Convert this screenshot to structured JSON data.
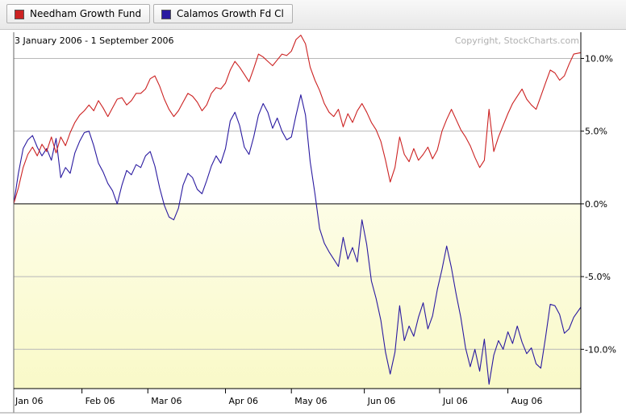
{
  "legend": {
    "items": [
      {
        "label": "Needham Growth Fund",
        "color": "#cc2222"
      },
      {
        "label": "Calamos Growth Fd Cl",
        "color": "#2a1aa0"
      }
    ]
  },
  "chart_data": {
    "type": "line",
    "subtitle": "3 January 2006 - 1 September 2006",
    "copyright": "Copyright, StockCharts.com",
    "ylim": [
      -12.7,
      11.8
    ],
    "y_ticks": [
      {
        "value": 10,
        "label": "10.0%"
      },
      {
        "value": 5,
        "label": "5.0%"
      },
      {
        "value": 0,
        "label": "0.0%"
      },
      {
        "value": -5,
        "label": "-5.0%"
      },
      {
        "value": -10,
        "label": "-10.0%"
      }
    ],
    "x_ticks": [
      {
        "date": "2006-01-03",
        "label": "Jan 06"
      },
      {
        "date": "2006-02-01",
        "label": "Feb 06"
      },
      {
        "date": "2006-03-01",
        "label": "Mar 06"
      },
      {
        "date": "2006-04-03",
        "label": "Apr 06"
      },
      {
        "date": "2006-05-01",
        "label": "May 06"
      },
      {
        "date": "2006-06-01",
        "label": "Jun 06"
      },
      {
        "date": "2006-07-03",
        "label": "Jul 06"
      },
      {
        "date": "2006-08-01",
        "label": "Aug 06"
      }
    ],
    "xlim": [
      "2006-01-03",
      "2006-09-01"
    ],
    "series": [
      {
        "name": "Needham Growth Fund",
        "color": "#cc2222",
        "points": [
          [
            "2006-01-03",
            0.0
          ],
          [
            "2006-01-05",
            1.1
          ],
          [
            "2006-01-07",
            2.5
          ],
          [
            "2006-01-09",
            3.4
          ],
          [
            "2006-01-11",
            3.9
          ],
          [
            "2006-01-13",
            3.3
          ],
          [
            "2006-01-15",
            4.1
          ],
          [
            "2006-01-17",
            3.6
          ],
          [
            "2006-01-19",
            4.6
          ],
          [
            "2006-01-21",
            3.5
          ],
          [
            "2006-01-23",
            4.6
          ],
          [
            "2006-01-25",
            4.0
          ],
          [
            "2006-01-27",
            4.9
          ],
          [
            "2006-01-29",
            5.6
          ],
          [
            "2006-01-31",
            6.1
          ],
          [
            "2006-02-02",
            6.4
          ],
          [
            "2006-02-04",
            6.8
          ],
          [
            "2006-02-06",
            6.4
          ],
          [
            "2006-02-08",
            7.1
          ],
          [
            "2006-02-10",
            6.6
          ],
          [
            "2006-02-12",
            6.0
          ],
          [
            "2006-02-14",
            6.6
          ],
          [
            "2006-02-16",
            7.2
          ],
          [
            "2006-02-18",
            7.3
          ],
          [
            "2006-02-20",
            6.8
          ],
          [
            "2006-02-22",
            7.1
          ],
          [
            "2006-02-24",
            7.6
          ],
          [
            "2006-02-26",
            7.6
          ],
          [
            "2006-02-28",
            7.9
          ],
          [
            "2006-03-02",
            8.6
          ],
          [
            "2006-03-04",
            8.8
          ],
          [
            "2006-03-06",
            8.1
          ],
          [
            "2006-03-08",
            7.2
          ],
          [
            "2006-03-10",
            6.5
          ],
          [
            "2006-03-12",
            6.0
          ],
          [
            "2006-03-14",
            6.4
          ],
          [
            "2006-03-16",
            7.0
          ],
          [
            "2006-03-18",
            7.6
          ],
          [
            "2006-03-20",
            7.4
          ],
          [
            "2006-03-22",
            7.0
          ],
          [
            "2006-03-24",
            6.4
          ],
          [
            "2006-03-26",
            6.8
          ],
          [
            "2006-03-28",
            7.6
          ],
          [
            "2006-03-30",
            8.0
          ],
          [
            "2006-04-01",
            7.9
          ],
          [
            "2006-04-03",
            8.3
          ],
          [
            "2006-04-05",
            9.2
          ],
          [
            "2006-04-07",
            9.8
          ],
          [
            "2006-04-09",
            9.4
          ],
          [
            "2006-04-11",
            8.9
          ],
          [
            "2006-04-13",
            8.4
          ],
          [
            "2006-04-15",
            9.3
          ],
          [
            "2006-04-17",
            10.3
          ],
          [
            "2006-04-19",
            10.1
          ],
          [
            "2006-04-21",
            9.8
          ],
          [
            "2006-04-23",
            9.5
          ],
          [
            "2006-04-25",
            9.9
          ],
          [
            "2006-04-27",
            10.3
          ],
          [
            "2006-04-29",
            10.2
          ],
          [
            "2006-05-01",
            10.5
          ],
          [
            "2006-05-03",
            11.3
          ],
          [
            "2006-05-05",
            11.6
          ],
          [
            "2006-05-07",
            11.0
          ],
          [
            "2006-05-09",
            9.4
          ],
          [
            "2006-05-11",
            8.5
          ],
          [
            "2006-05-13",
            7.8
          ],
          [
            "2006-05-15",
            6.9
          ],
          [
            "2006-05-17",
            6.3
          ],
          [
            "2006-05-19",
            6.0
          ],
          [
            "2006-05-21",
            6.5
          ],
          [
            "2006-05-23",
            5.3
          ],
          [
            "2006-05-25",
            6.2
          ],
          [
            "2006-05-27",
            5.6
          ],
          [
            "2006-05-29",
            6.4
          ],
          [
            "2006-05-31",
            6.9
          ],
          [
            "2006-06-02",
            6.3
          ],
          [
            "2006-06-04",
            5.6
          ],
          [
            "2006-06-06",
            5.1
          ],
          [
            "2006-06-08",
            4.3
          ],
          [
            "2006-06-10",
            3.0
          ],
          [
            "2006-06-12",
            1.5
          ],
          [
            "2006-06-14",
            2.5
          ],
          [
            "2006-06-16",
            4.6
          ],
          [
            "2006-06-18",
            3.4
          ],
          [
            "2006-06-20",
            2.9
          ],
          [
            "2006-06-22",
            3.8
          ],
          [
            "2006-06-24",
            3.0
          ],
          [
            "2006-06-26",
            3.4
          ],
          [
            "2006-06-28",
            3.9
          ],
          [
            "2006-06-30",
            3.1
          ],
          [
            "2006-07-02",
            3.7
          ],
          [
            "2006-07-04",
            5.0
          ],
          [
            "2006-07-06",
            5.8
          ],
          [
            "2006-07-08",
            6.5
          ],
          [
            "2006-07-10",
            5.8
          ],
          [
            "2006-07-12",
            5.1
          ],
          [
            "2006-07-14",
            4.6
          ],
          [
            "2006-07-16",
            4.0
          ],
          [
            "2006-07-18",
            3.2
          ],
          [
            "2006-07-20",
            2.5
          ],
          [
            "2006-07-22",
            3.0
          ],
          [
            "2006-07-24",
            6.5
          ],
          [
            "2006-07-26",
            3.6
          ],
          [
            "2006-07-28",
            4.6
          ],
          [
            "2006-07-30",
            5.4
          ],
          [
            "2006-08-01",
            6.2
          ],
          [
            "2006-08-03",
            6.9
          ],
          [
            "2006-08-05",
            7.4
          ],
          [
            "2006-08-07",
            7.9
          ],
          [
            "2006-08-09",
            7.2
          ],
          [
            "2006-08-11",
            6.8
          ],
          [
            "2006-08-13",
            6.5
          ],
          [
            "2006-08-15",
            7.4
          ],
          [
            "2006-08-17",
            8.3
          ],
          [
            "2006-08-19",
            9.2
          ],
          [
            "2006-08-21",
            9.0
          ],
          [
            "2006-08-23",
            8.5
          ],
          [
            "2006-08-25",
            8.8
          ],
          [
            "2006-08-27",
            9.6
          ],
          [
            "2006-08-29",
            10.3
          ],
          [
            "2006-09-01",
            10.4
          ]
        ]
      },
      {
        "name": "Calamos Growth Fd Cl",
        "color": "#2a1aa0",
        "points": [
          [
            "2006-01-03",
            0.0
          ],
          [
            "2006-01-05",
            2.1
          ],
          [
            "2006-01-07",
            3.8
          ],
          [
            "2006-01-09",
            4.4
          ],
          [
            "2006-01-11",
            4.7
          ],
          [
            "2006-01-13",
            3.9
          ],
          [
            "2006-01-15",
            3.3
          ],
          [
            "2006-01-17",
            3.8
          ],
          [
            "2006-01-19",
            3.0
          ],
          [
            "2006-01-21",
            4.5
          ],
          [
            "2006-01-23",
            1.8
          ],
          [
            "2006-01-25",
            2.5
          ],
          [
            "2006-01-27",
            2.1
          ],
          [
            "2006-01-29",
            3.5
          ],
          [
            "2006-01-31",
            4.3
          ],
          [
            "2006-02-02",
            4.9
          ],
          [
            "2006-02-04",
            5.0
          ],
          [
            "2006-02-06",
            4.0
          ],
          [
            "2006-02-08",
            2.8
          ],
          [
            "2006-02-10",
            2.2
          ],
          [
            "2006-02-12",
            1.4
          ],
          [
            "2006-02-14",
            0.9
          ],
          [
            "2006-02-16",
            0.0
          ],
          [
            "2006-02-18",
            1.3
          ],
          [
            "2006-02-20",
            2.3
          ],
          [
            "2006-02-22",
            2.0
          ],
          [
            "2006-02-24",
            2.7
          ],
          [
            "2006-02-26",
            2.5
          ],
          [
            "2006-02-28",
            3.3
          ],
          [
            "2006-03-02",
            3.6
          ],
          [
            "2006-03-04",
            2.6
          ],
          [
            "2006-03-06",
            1.1
          ],
          [
            "2006-03-08",
            -0.1
          ],
          [
            "2006-03-10",
            -0.9
          ],
          [
            "2006-03-12",
            -1.1
          ],
          [
            "2006-03-14",
            -0.3
          ],
          [
            "2006-03-16",
            1.3
          ],
          [
            "2006-03-18",
            2.1
          ],
          [
            "2006-03-20",
            1.8
          ],
          [
            "2006-03-22",
            1.0
          ],
          [
            "2006-03-24",
            0.7
          ],
          [
            "2006-03-26",
            1.6
          ],
          [
            "2006-03-28",
            2.6
          ],
          [
            "2006-03-30",
            3.3
          ],
          [
            "2006-04-01",
            2.8
          ],
          [
            "2006-04-03",
            3.8
          ],
          [
            "2006-04-05",
            5.7
          ],
          [
            "2006-04-07",
            6.3
          ],
          [
            "2006-04-09",
            5.4
          ],
          [
            "2006-04-11",
            3.9
          ],
          [
            "2006-04-13",
            3.4
          ],
          [
            "2006-04-15",
            4.6
          ],
          [
            "2006-04-17",
            6.1
          ],
          [
            "2006-04-19",
            6.9
          ],
          [
            "2006-04-21",
            6.3
          ],
          [
            "2006-04-23",
            5.2
          ],
          [
            "2006-04-25",
            5.9
          ],
          [
            "2006-04-27",
            5.0
          ],
          [
            "2006-04-29",
            4.4
          ],
          [
            "2006-05-01",
            4.6
          ],
          [
            "2006-05-03",
            6.1
          ],
          [
            "2006-05-05",
            7.5
          ],
          [
            "2006-05-07",
            6.1
          ],
          [
            "2006-05-09",
            2.9
          ],
          [
            "2006-05-11",
            0.7
          ],
          [
            "2006-05-13",
            -1.7
          ],
          [
            "2006-05-15",
            -2.7
          ],
          [
            "2006-05-17",
            -3.3
          ],
          [
            "2006-05-19",
            -3.8
          ],
          [
            "2006-05-21",
            -4.3
          ],
          [
            "2006-05-23",
            -2.3
          ],
          [
            "2006-05-25",
            -3.8
          ],
          [
            "2006-05-27",
            -3.0
          ],
          [
            "2006-05-29",
            -4.0
          ],
          [
            "2006-05-31",
            -1.1
          ],
          [
            "2006-06-02",
            -2.8
          ],
          [
            "2006-06-04",
            -5.3
          ],
          [
            "2006-06-06",
            -6.5
          ],
          [
            "2006-06-08",
            -8.0
          ],
          [
            "2006-06-10",
            -10.2
          ],
          [
            "2006-06-12",
            -11.7
          ],
          [
            "2006-06-14",
            -10.2
          ],
          [
            "2006-06-16",
            -7.0
          ],
          [
            "2006-06-18",
            -9.4
          ],
          [
            "2006-06-20",
            -8.4
          ],
          [
            "2006-06-22",
            -9.1
          ],
          [
            "2006-06-24",
            -7.8
          ],
          [
            "2006-06-26",
            -6.8
          ],
          [
            "2006-06-28",
            -8.6
          ],
          [
            "2006-06-30",
            -7.7
          ],
          [
            "2006-07-02",
            -5.9
          ],
          [
            "2006-07-04",
            -4.5
          ],
          [
            "2006-07-06",
            -2.9
          ],
          [
            "2006-07-08",
            -4.4
          ],
          [
            "2006-07-10",
            -6.2
          ],
          [
            "2006-07-12",
            -7.8
          ],
          [
            "2006-07-14",
            -9.9
          ],
          [
            "2006-07-16",
            -11.2
          ],
          [
            "2006-07-18",
            -10.0
          ],
          [
            "2006-07-20",
            -11.5
          ],
          [
            "2006-07-22",
            -9.3
          ],
          [
            "2006-07-24",
            -12.4
          ],
          [
            "2006-07-26",
            -10.4
          ],
          [
            "2006-07-28",
            -9.4
          ],
          [
            "2006-07-30",
            -10.0
          ],
          [
            "2006-08-01",
            -8.8
          ],
          [
            "2006-08-03",
            -9.6
          ],
          [
            "2006-08-05",
            -8.4
          ],
          [
            "2006-08-07",
            -9.5
          ],
          [
            "2006-08-09",
            -10.3
          ],
          [
            "2006-08-11",
            -9.9
          ],
          [
            "2006-08-13",
            -11.0
          ],
          [
            "2006-08-15",
            -11.3
          ],
          [
            "2006-08-17",
            -9.2
          ],
          [
            "2006-08-19",
            -6.9
          ],
          [
            "2006-08-21",
            -7.0
          ],
          [
            "2006-08-23",
            -7.6
          ],
          [
            "2006-08-25",
            -8.9
          ],
          [
            "2006-08-27",
            -8.6
          ],
          [
            "2006-08-29",
            -7.8
          ],
          [
            "2006-09-01",
            -7.1
          ]
        ]
      }
    ],
    "grid": true,
    "background": {
      "above_zero": "#ffffff",
      "below_zero_top": "#fdfde6",
      "below_zero_bottom": "#f9f9c8"
    }
  }
}
